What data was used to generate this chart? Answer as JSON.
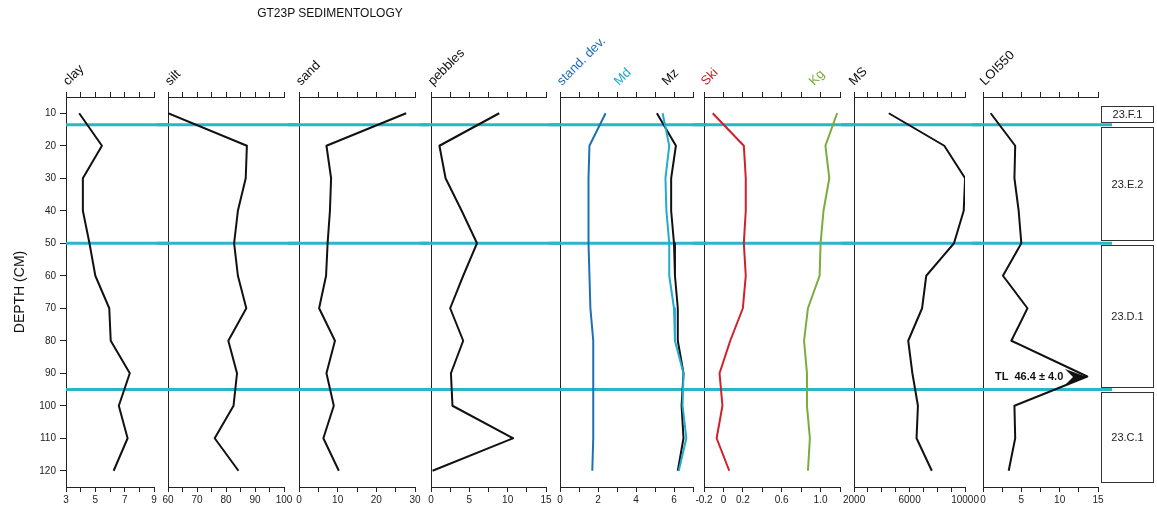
{
  "chart_data": [
    {
      "type": "other",
      "title": "GT23P SEDIMENTOLOGY"
    },
    {
      "type": "line",
      "xlabel": "clay",
      "ylabel": "DEPTH (CM)",
      "color": "#111111",
      "x": [
        3.9,
        5.45,
        4.15,
        4.15,
        4.6,
        5.0,
        5.95,
        6.05,
        7.35,
        6.6,
        7.2,
        6.25
      ],
      "values": [
        10,
        20,
        30,
        40,
        50,
        60,
        70,
        80,
        90,
        100,
        110,
        120
      ],
      "xlim": [
        3,
        9
      ],
      "xticks": [
        3,
        {
          "value": 4,
          "label": null
        },
        5,
        {
          "value": 6,
          "label": null
        },
        7,
        {
          "value": 8,
          "label": null
        },
        9
      ],
      "ylim": [
        125,
        5
      ],
      "yticks": [
        10,
        20,
        30,
        40,
        50,
        60,
        70,
        80,
        90,
        100,
        110,
        120
      ],
      "ref_lines": [
        {
          "axis": "y",
          "value": 13.5,
          "color": "#2ab6c6"
        },
        {
          "axis": "y",
          "value": 50,
          "color": "#2ab6c6"
        },
        {
          "axis": "y",
          "value": 95,
          "color": "#2ab6c6"
        }
      ]
    },
    {
      "type": "line",
      "xlabel": "silt",
      "color": "#111111",
      "x": [
        60,
        87.2,
        86.8,
        84.1,
        82.8,
        84.1,
        87,
        80.8,
        83.8,
        82.6,
        76.1,
        84.3
      ],
      "values": [
        10,
        20,
        30,
        40,
        50,
        60,
        70,
        80,
        90,
        100,
        110,
        120
      ],
      "xlim": [
        60,
        100
      ],
      "xticks": [
        60,
        {
          "value": 65,
          "label": null
        },
        70,
        {
          "value": 75,
          "label": null
        },
        80,
        {
          "value": 85,
          "label": null
        },
        90,
        {
          "value": 95,
          "label": null
        },
        100
      ],
      "ylim": [
        125,
        5
      ],
      "tick_labels": "x",
      "ref_lines": [
        {
          "axis": "y",
          "value": 13.5,
          "color": "#2ab6c6"
        },
        {
          "axis": "y",
          "value": 50,
          "color": "#2ab6c6"
        },
        {
          "axis": "y",
          "value": 95,
          "color": "#2ab6c6"
        }
      ]
    },
    {
      "type": "line",
      "xlabel": "sand",
      "color": "#111111",
      "x": [
        27.7,
        7.1,
        8.3,
        8.0,
        7.4,
        7.0,
        5.2,
        9.3,
        7.1,
        9.0,
        6.3,
        10.3
      ],
      "values": [
        10,
        20,
        30,
        40,
        50,
        60,
        70,
        80,
        90,
        100,
        110,
        120
      ],
      "xlim": [
        0,
        30
      ],
      "xticks": [
        0,
        {
          "value": 5,
          "label": null
        },
        10,
        {
          "value": 15,
          "label": null
        },
        20,
        {
          "value": 25,
          "label": null
        },
        30
      ],
      "ylim": [
        125,
        5
      ],
      "tick_labels": "x",
      "ref_lines": [
        {
          "axis": "y",
          "value": 13.5,
          "color": "#2ab6c6"
        },
        {
          "axis": "y",
          "value": 50,
          "color": "#2ab6c6"
        },
        {
          "axis": "y",
          "value": 95,
          "color": "#2ab6c6"
        }
      ]
    },
    {
      "type": "line",
      "xlabel": "pebbles",
      "color": "#111111",
      "x": [
        8.9,
        1.1,
        1.9,
        4.0,
        6.0,
        4.2,
        2.5,
        4.2,
        2.6,
        2.8,
        10.7,
        0.2
      ],
      "values": [
        10,
        20,
        30,
        40,
        50,
        60,
        70,
        80,
        90,
        100,
        110,
        120
      ],
      "xlim": [
        0,
        15
      ],
      "xticks": [
        0,
        {
          "value": 2.5,
          "label": null
        },
        5,
        {
          "value": 7.5,
          "label": null
        },
        10,
        {
          "value": 12.5,
          "label": null
        },
        15
      ],
      "ylim": [
        125,
        5
      ],
      "tick_labels": "x",
      "ref_lines": [
        {
          "axis": "y",
          "value": 13.5,
          "color": "#2ab6c6"
        },
        {
          "axis": "y",
          "value": 50,
          "color": "#2ab6c6"
        },
        {
          "axis": "y",
          "value": 95,
          "color": "#2ab6c6"
        }
      ]
    },
    {
      "type": "line",
      "legend": "top",
      "series": [
        {
          "name": "stand. dev.",
          "color": "#1f6fb5",
          "x": [
            2.4,
            1.55,
            1.5,
            1.5,
            1.5,
            1.55,
            1.6,
            1.75,
            1.75,
            1.75,
            1.75,
            1.7
          ],
          "values": [
            10,
            20,
            30,
            40,
            50,
            60,
            70,
            80,
            90,
            100,
            110,
            120
          ]
        },
        {
          "name": "Md",
          "color": "#22aacf",
          "x": [
            5.4,
            5.75,
            5.55,
            5.6,
            5.75,
            5.75,
            6.0,
            6.05,
            6.5,
            6.45,
            6.65,
            6.25
          ],
          "values": [
            10,
            20,
            30,
            40,
            50,
            60,
            70,
            80,
            90,
            100,
            110,
            120
          ]
        },
        {
          "name": "Mz",
          "color": "#111111",
          "x": [
            5.1,
            6.1,
            5.85,
            5.85,
            6.0,
            6.05,
            6.2,
            6.2,
            6.5,
            6.4,
            6.5,
            6.2
          ],
          "values": [
            10,
            20,
            30,
            40,
            50,
            60,
            70,
            80,
            90,
            100,
            110,
            120
          ]
        }
      ],
      "xlim": [
        0,
        7
      ],
      "xticks": [
        0,
        {
          "value": 1,
          "label": null
        },
        2,
        {
          "value": 3,
          "label": null
        },
        4,
        {
          "value": 5,
          "label": null
        },
        6,
        {
          "value": 7,
          "label": null
        }
      ],
      "ylim": [
        125,
        5
      ],
      "tick_labels": "x",
      "ref_lines": [
        {
          "axis": "y",
          "value": 13.5,
          "color": "#2ab6c6"
        },
        {
          "axis": "y",
          "value": 50,
          "color": "#2ab6c6"
        },
        {
          "axis": "y",
          "value": 95,
          "color": "#2ab6c6"
        }
      ]
    },
    {
      "type": "line",
      "legend": "top",
      "series": [
        {
          "name": "Ski",
          "color": "#d0202a",
          "x": [
            -0.11,
            0.21,
            0.23,
            0.23,
            0.21,
            0.23,
            0.2,
            0.07,
            -0.04,
            -0.01,
            -0.07,
            0.06
          ],
          "values": [
            10,
            20,
            30,
            40,
            50,
            60,
            70,
            80,
            90,
            100,
            110,
            120
          ]
        },
        {
          "name": "Kg",
          "color": "#7aab3c",
          "x": [
            1.17,
            1.05,
            1.09,
            1.03,
            1.0,
            0.99,
            0.87,
            0.83,
            0.86,
            0.86,
            0.89,
            0.87
          ],
          "values": [
            10,
            20,
            30,
            40,
            50,
            60,
            70,
            80,
            90,
            100,
            110,
            120
          ]
        }
      ],
      "xlim": [
        -0.2,
        1.2
      ],
      "xticks": [
        -0.2,
        0,
        0.2,
        {
          "value": 0.4,
          "label": null
        },
        0.6,
        {
          "value": 0.8,
          "label": null
        },
        {
          "value": 1,
          "label": "1.0"
        },
        {
          "value": 1.2,
          "label": null
        }
      ],
      "ylim": [
        125,
        5
      ],
      "tick_labels": "x",
      "ref_lines": [
        {
          "axis": "y",
          "value": 13.5,
          "color": "#2ab6c6"
        },
        {
          "axis": "y",
          "value": 50,
          "color": "#2ab6c6"
        },
        {
          "axis": "y",
          "value": 95,
          "color": "#2ab6c6"
        }
      ]
    },
    {
      "type": "line",
      "xlabel": "MS",
      "color": "#111111",
      "x": [
        4500,
        8500,
        10000,
        9900,
        9200,
        7200,
        6900,
        5900,
        6200,
        6600,
        6500,
        7600
      ],
      "values": [
        10,
        20,
        30,
        40,
        50,
        60,
        70,
        80,
        90,
        100,
        110,
        120
      ],
      "xlim": [
        2000,
        10000
      ],
      "xticks": [
        2000,
        {
          "value": 3000,
          "label": null
        },
        {
          "value": 4000,
          "label": null
        },
        {
          "value": 5000,
          "label": null
        },
        6000,
        {
          "value": 7000,
          "label": null
        },
        {
          "value": 8000,
          "label": null
        },
        {
          "value": 9000,
          "label": null
        },
        10000
      ],
      "ylim": [
        125,
        5
      ],
      "tick_labels": "x",
      "ref_lines": [
        {
          "axis": "y",
          "value": 13.5,
          "color": "#2ab6c6"
        },
        {
          "axis": "y",
          "value": 50,
          "color": "#2ab6c6"
        },
        {
          "axis": "y",
          "value": 95,
          "color": "#2ab6c6"
        }
      ]
    },
    {
      "type": "line",
      "xlabel": "LOI550",
      "color": "#111111",
      "x": [
        1.0,
        4.2,
        4.1,
        4.65,
        5.0,
        2.6,
        5.8,
        3.7,
        13.6,
        4.1,
        4.2,
        3.35
      ],
      "values": [
        10,
        20,
        30,
        40,
        50,
        60,
        70,
        80,
        91,
        100,
        110,
        120
      ],
      "xlim": [
        0,
        15
      ],
      "xticks": [
        0,
        {
          "value": 2.5,
          "label": null
        },
        5,
        {
          "value": 7.5,
          "label": null
        },
        10,
        {
          "value": 12.5,
          "label": null
        },
        15
      ],
      "ylim": [
        125,
        5
      ],
      "tick_labels": "x",
      "annotations": [
        {
          "text": "TL  46.4 ± 4.0",
          "x": 13.6,
          "y": 91
        }
      ],
      "ref_lines": [
        {
          "axis": "y",
          "value": 13.5,
          "color": "#2ab6c6"
        },
        {
          "axis": "y",
          "value": 50,
          "color": "#2ab6c6"
        },
        {
          "axis": "y",
          "value": 95,
          "color": "#2ab6c6"
        }
      ]
    },
    {
      "type": "other",
      "annotations": [
        "23.F.1",
        "23.E.2",
        "23.D.1",
        "23.C.1"
      ]
    }
  ]
}
